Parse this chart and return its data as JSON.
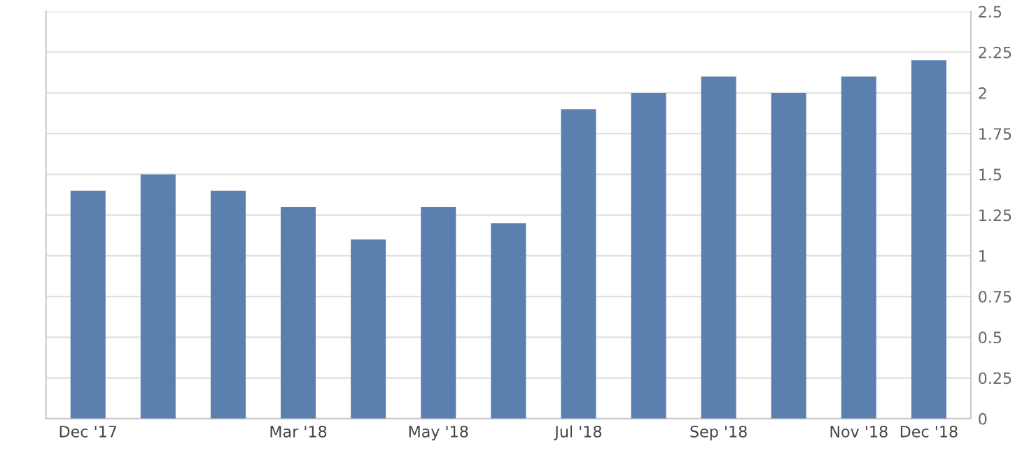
{
  "chart_data": {
    "type": "bar",
    "categories": [
      "Dec '17",
      null,
      null,
      "Mar '18",
      null,
      "May '18",
      null,
      "Jul '18",
      null,
      "Sep '18",
      null,
      "Nov '18",
      "Dec '18"
    ],
    "values": [
      1.4,
      1.5,
      1.4,
      1.3,
      1.1,
      1.3,
      1.2,
      1.9,
      2.0,
      2.1,
      2.0,
      2.1,
      2.2
    ],
    "color": "#5b80b0",
    "ylim": [
      0,
      2.5
    ],
    "yticks": [
      0,
      0.25,
      0.5,
      0.75,
      1,
      1.25,
      1.5,
      1.75,
      2,
      2.25,
      2.5
    ],
    "grid": "y"
  }
}
